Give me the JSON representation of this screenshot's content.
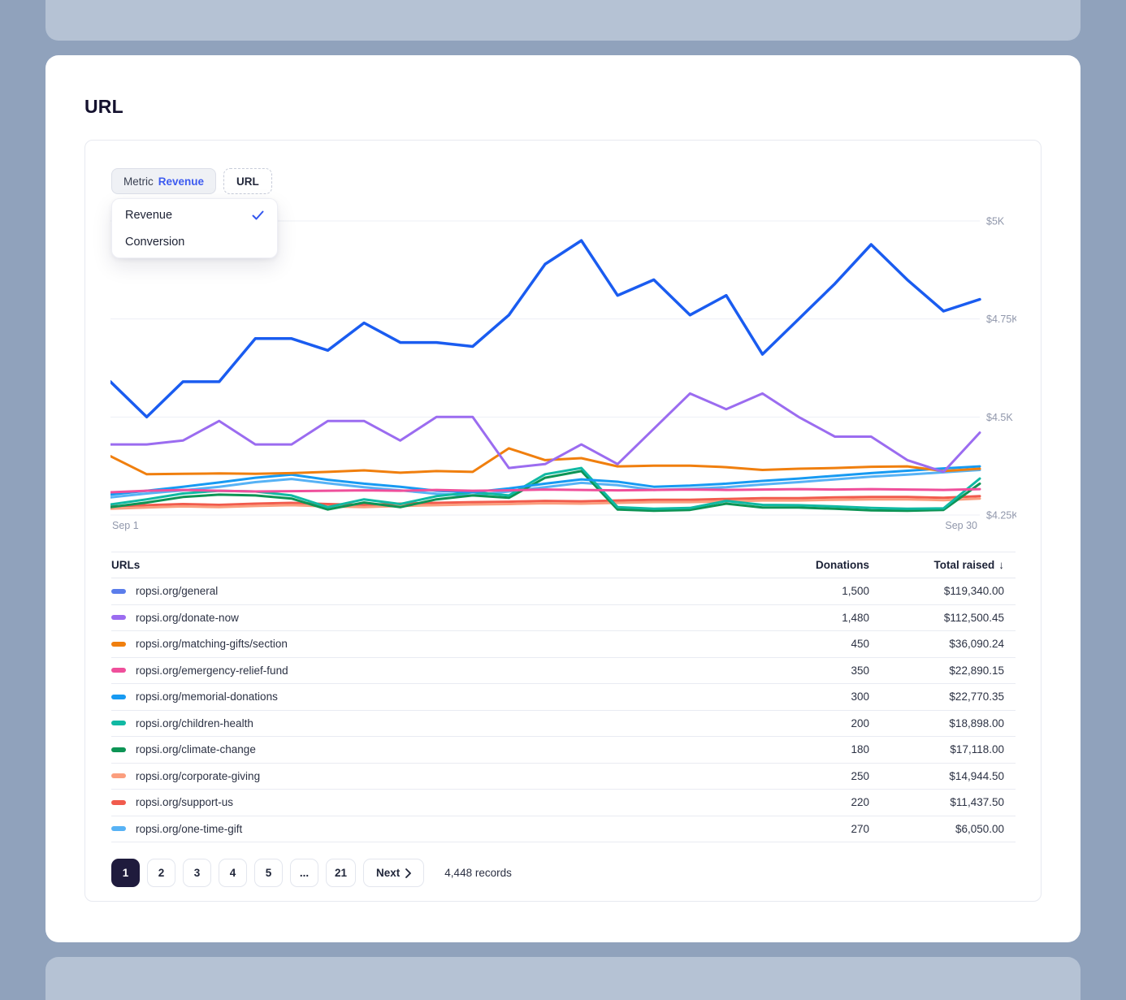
{
  "page": {
    "title": "URL"
  },
  "toolbar": {
    "metric_chip": {
      "label": "Metric",
      "value": "Revenue"
    },
    "url_chip": {
      "label": "URL"
    }
  },
  "metric_dropdown": {
    "options": [
      {
        "label": "Revenue",
        "selected": true
      },
      {
        "label": "Conversion",
        "selected": false
      }
    ]
  },
  "chart_data": {
    "type": "line",
    "title": "",
    "xlabel": "",
    "ylabel": "",
    "x_axis": {
      "start_label": "Sep 1",
      "end_label": "Sep 30"
    },
    "y_ticks": [
      {
        "label": "$5K",
        "value": 5.0
      },
      {
        "label": "$4.75K",
        "value": 4.75
      },
      {
        "label": "$4.5K",
        "value": 4.5
      },
      {
        "label": "$4.25K",
        "value": 4.25
      }
    ],
    "ylim": [
      4.25,
      5.02
    ],
    "unit": "$K",
    "grid": true,
    "legend_position": "table-swatches",
    "series": [
      {
        "name": "ropsi.org/general",
        "color": "#1a5cf0",
        "values": [
          4.59,
          4.5,
          4.59,
          4.59,
          4.7,
          4.7,
          4.67,
          4.74,
          4.69,
          4.69,
          4.68,
          4.76,
          4.89,
          4.95,
          4.81,
          4.85,
          4.76,
          4.81,
          4.66,
          4.75,
          4.84,
          4.94,
          4.85,
          4.77,
          4.8
        ]
      },
      {
        "name": "ropsi.org/donate-now",
        "color": "#9b6cf0",
        "values": [
          4.43,
          4.43,
          4.44,
          4.49,
          4.43,
          4.43,
          4.49,
          4.49,
          4.44,
          4.5,
          4.5,
          4.37,
          4.38,
          4.43,
          4.38,
          4.47,
          4.56,
          4.52,
          4.56,
          4.5,
          4.45,
          4.45,
          4.39,
          4.36,
          4.46
        ]
      },
      {
        "name": "ropsi.org/matching-gifts/section",
        "color": "#f07f0e",
        "values": [
          4.4,
          4.354,
          4.355,
          4.356,
          4.355,
          4.357,
          4.36,
          4.364,
          4.358,
          4.362,
          4.36,
          4.42,
          4.39,
          4.395,
          4.374,
          4.376,
          4.376,
          4.372,
          4.365,
          4.368,
          4.37,
          4.373,
          4.374,
          4.362,
          4.368
        ]
      },
      {
        "name": "ropsi.org/emergency-relief-fund",
        "color": "#ef4f9b",
        "values": [
          4.308,
          4.312,
          4.314,
          4.312,
          4.31,
          4.311,
          4.312,
          4.313,
          4.312,
          4.314,
          4.312,
          4.313,
          4.315,
          4.314,
          4.313,
          4.314,
          4.315,
          4.314,
          4.315,
          4.316,
          4.315,
          4.316,
          4.315,
          4.314,
          4.316
        ]
      },
      {
        "name": "ropsi.org/memorial-donations",
        "color": "#179af2",
        "values": [
          4.302,
          4.312,
          4.322,
          4.333,
          4.345,
          4.353,
          4.34,
          4.33,
          4.322,
          4.312,
          4.308,
          4.318,
          4.33,
          4.341,
          4.335,
          4.322,
          4.325,
          4.33,
          4.337,
          4.343,
          4.35,
          4.357,
          4.363,
          4.369,
          4.374
        ]
      },
      {
        "name": "ropsi.org/children-health",
        "color": "#10b9a3",
        "values": [
          4.277,
          4.29,
          4.305,
          4.312,
          4.31,
          4.3,
          4.27,
          4.29,
          4.278,
          4.298,
          4.308,
          4.3,
          4.354,
          4.37,
          4.27,
          4.266,
          4.268,
          4.286,
          4.276,
          4.275,
          4.272,
          4.268,
          4.266,
          4.267,
          4.343
        ]
      },
      {
        "name": "ropsi.org/climate-change",
        "color": "#0d9455",
        "values": [
          4.27,
          4.282,
          4.296,
          4.302,
          4.3,
          4.292,
          4.264,
          4.282,
          4.27,
          4.29,
          4.3,
          4.294,
          4.345,
          4.362,
          4.264,
          4.261,
          4.263,
          4.279,
          4.269,
          4.269,
          4.266,
          4.262,
          4.261,
          4.263,
          4.33
        ]
      },
      {
        "name": "ropsi.org/corporate-giving",
        "color": "#fb9e7e",
        "values": [
          4.266,
          4.269,
          4.272,
          4.27,
          4.273,
          4.275,
          4.272,
          4.27,
          4.273,
          4.275,
          4.277,
          4.278,
          4.28,
          4.279,
          4.281,
          4.283,
          4.283,
          4.285,
          4.287,
          4.287,
          4.289,
          4.29,
          4.29,
          4.288,
          4.292
        ]
      },
      {
        "name": "ropsi.org/support-us",
        "color": "#f15b4d",
        "values": [
          4.272,
          4.275,
          4.278,
          4.276,
          4.279,
          4.281,
          4.278,
          4.276,
          4.279,
          4.281,
          4.283,
          4.284,
          4.286,
          4.285,
          4.287,
          4.289,
          4.289,
          4.291,
          4.293,
          4.293,
          4.295,
          4.296,
          4.296,
          4.294,
          4.298
        ]
      },
      {
        "name": "ropsi.org/one-time-gift",
        "color": "#57b2f5",
        "values": [
          4.295,
          4.305,
          4.313,
          4.322,
          4.334,
          4.342,
          4.331,
          4.321,
          4.313,
          4.304,
          4.3,
          4.31,
          4.321,
          4.332,
          4.326,
          4.314,
          4.317,
          4.321,
          4.328,
          4.334,
          4.341,
          4.348,
          4.353,
          4.359,
          4.365
        ]
      }
    ]
  },
  "table": {
    "columns": [
      "URLs",
      "Donations",
      "Total raised"
    ],
    "sort": {
      "column": "Total raised",
      "direction": "desc",
      "indicator": "↓"
    },
    "rows": [
      {
        "color": "#5b7deb",
        "url": "ropsi.org/general",
        "donations": "1,500",
        "total_raised": "$119,340.00"
      },
      {
        "color": "#9b6cf0",
        "url": "ropsi.org/donate-now",
        "donations": "1,480",
        "total_raised": "$112,500.45"
      },
      {
        "color": "#f07f0e",
        "url": "ropsi.org/matching-gifts/section",
        "donations": "450",
        "total_raised": "$36,090.24"
      },
      {
        "color": "#ef4f9b",
        "url": "ropsi.org/emergency-relief-fund",
        "donations": "350",
        "total_raised": "$22,890.15"
      },
      {
        "color": "#179af2",
        "url": "ropsi.org/memorial-donations",
        "donations": "300",
        "total_raised": "$22,770.35"
      },
      {
        "color": "#10b9a3",
        "url": "ropsi.org/children-health",
        "donations": "200",
        "total_raised": "$18,898.00"
      },
      {
        "color": "#0d9455",
        "url": "ropsi.org/climate-change",
        "donations": "180",
        "total_raised": "$17,118.00"
      },
      {
        "color": "#fb9e7e",
        "url": "ropsi.org/corporate-giving",
        "donations": "250",
        "total_raised": "$14,944.50"
      },
      {
        "color": "#f15b4d",
        "url": "ropsi.org/support-us",
        "donations": "220",
        "total_raised": "$11,437.50"
      },
      {
        "color": "#57b2f5",
        "url": "ropsi.org/one-time-gift",
        "donations": "270",
        "total_raised": "$6,050.00"
      }
    ]
  },
  "pagination": {
    "pages": [
      "1",
      "2",
      "3",
      "4",
      "5",
      "...",
      "21"
    ],
    "active": "1",
    "next_label": "Next",
    "records_label": "4,448 records"
  },
  "colors": {
    "accent_blue": "#3d5bf0",
    "active_page_bg": "#1f1b3d",
    "background": "#90a2bc",
    "strip": "#b5c2d4",
    "grid_line": "#edeff4",
    "axis_text": "#9097ab"
  }
}
